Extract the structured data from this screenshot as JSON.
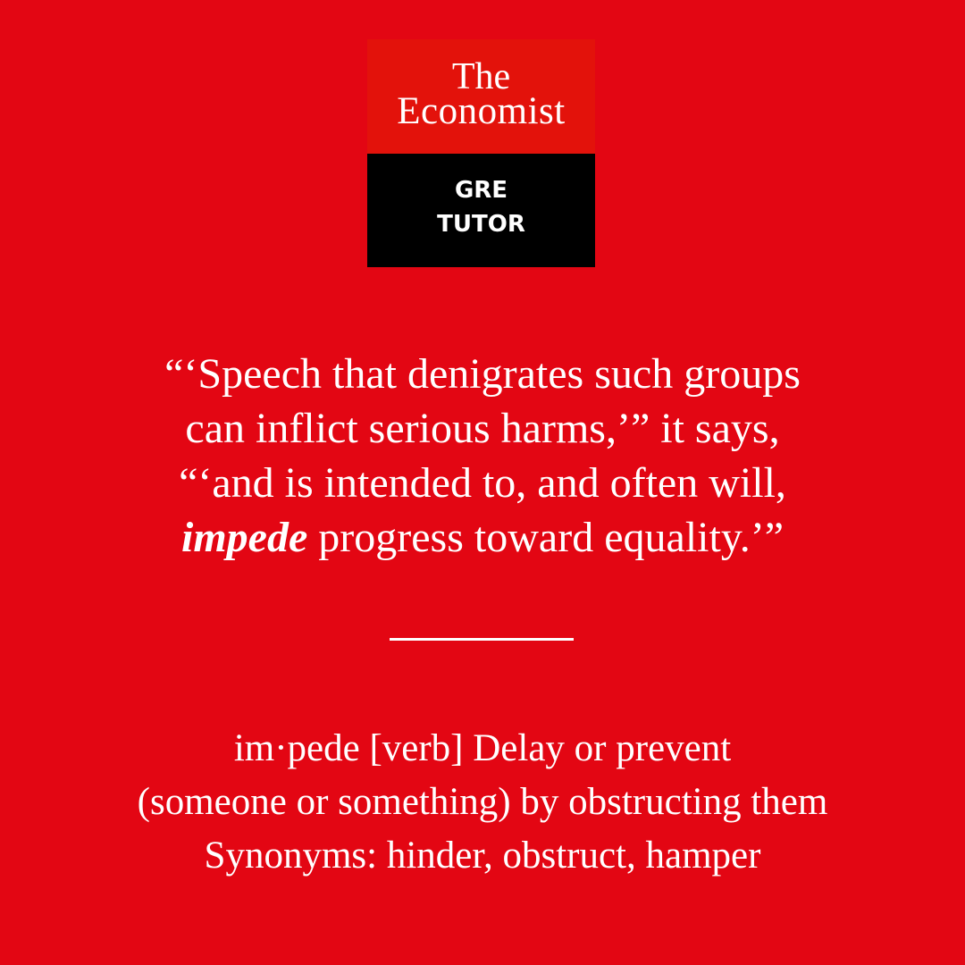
{
  "logo": {
    "line1": "The",
    "line2": "Economist",
    "line3": "GRE",
    "line4": "TUTOR"
  },
  "quote": {
    "line1": "“‘Speech that denigrates such groups",
    "line2": "can inflict serious harms,’” it says,",
    "line3": "“‘and is intended to, and often will,",
    "line4_highlight": "impede",
    "line4_rest": " progress toward equality.’”"
  },
  "definition": {
    "line1": "im·pede [verb] Delay or prevent",
    "line2": "(someone or something) by obstructing them",
    "line3": "Synonyms: hinder, obstruct, hamper"
  },
  "colors": {
    "background": "#e30613",
    "logo_top": "#e3120b",
    "logo_bottom": "#000000",
    "text": "#ffffff"
  }
}
